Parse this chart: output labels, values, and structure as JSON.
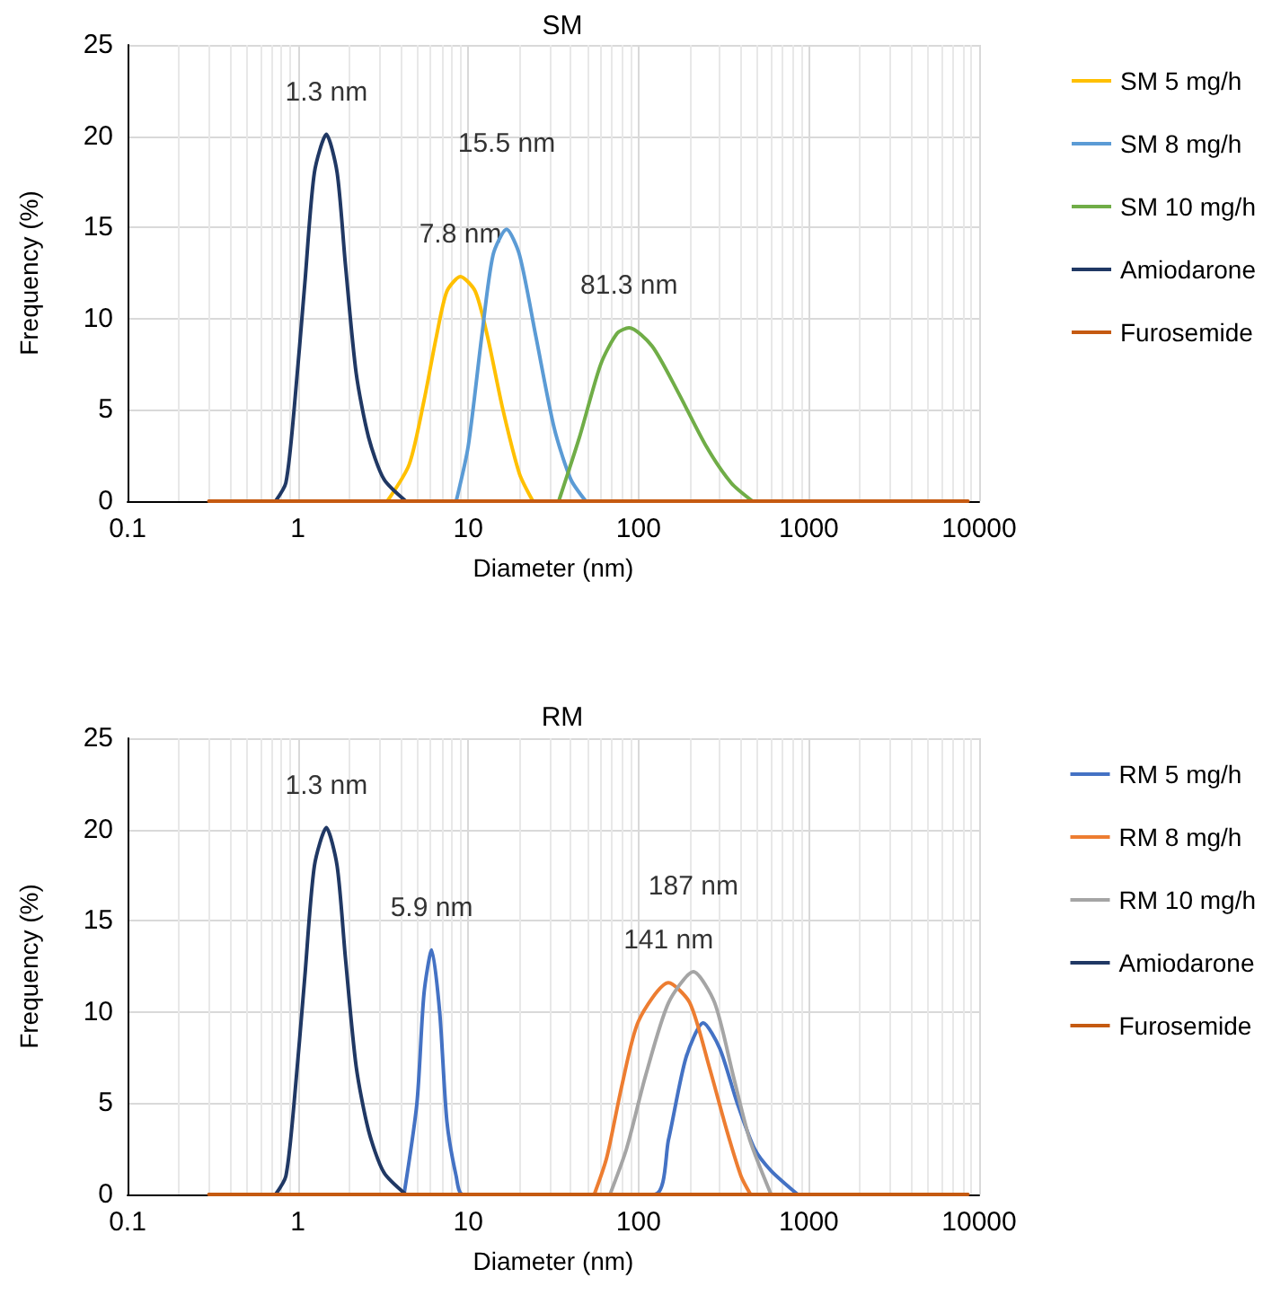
{
  "chart_data": [
    {
      "type": "line",
      "title": "SM",
      "xlabel": "Diameter (nm)",
      "ylabel": "Frequency (%)",
      "log": "x",
      "xlim": [
        0.1,
        10000
      ],
      "xticks": [
        0.1,
        1,
        10,
        100,
        1000,
        10000
      ],
      "ylim": [
        0,
        25
      ],
      "yticks": [
        0,
        5,
        10,
        15,
        20,
        25
      ],
      "grid": true,
      "legend": "right",
      "line_style": "solid",
      "series": [
        {
          "name": "SM 5 mg/h",
          "color": "#ffc000",
          "x": [
            3.35,
            4.5,
            5.5,
            6.5,
            7.5,
            9,
            11,
            13,
            16,
            20,
            24
          ],
          "values": [
            0,
            2,
            5.5,
            9,
            11.5,
            12.3,
            11.5,
            9,
            5,
            1.5,
            0
          ]
        },
        {
          "name": "SM 8 mg/h",
          "color": "#5b9bd5",
          "x": [
            8.5,
            10,
            12,
            14,
            16.8,
            20,
            25,
            32,
            40,
            49
          ],
          "values": [
            0,
            3,
            9,
            13.5,
            14.9,
            13.5,
            9,
            4,
            1.2,
            0
          ]
        },
        {
          "name": "SM 10 mg/h",
          "color": "#70ad47",
          "x": [
            34,
            45,
            60,
            75,
            88,
            120,
            170,
            250,
            350,
            467
          ],
          "values": [
            0,
            3.5,
            7.5,
            9.2,
            9.5,
            8.5,
            6,
            3,
            1,
            0
          ]
        },
        {
          "name": "Amiodarone",
          "color": "#203864",
          "x": [
            0.74,
            0.85,
            0.95,
            1.1,
            1.25,
            1.47,
            1.7,
            1.9,
            2.2,
            2.6,
            3.2,
            4.3
          ],
          "values": [
            0,
            1,
            5,
            12,
            18,
            20.1,
            18,
            13,
            7,
            3.5,
            1.2,
            0
          ]
        },
        {
          "name": "Furosemide",
          "color": "#c55a11",
          "x": [
            0.3,
            8600
          ],
          "values": [
            0,
            0
          ]
        }
      ],
      "annotations": [
        {
          "text": "1.3 nm",
          "x": 1.47,
          "y": 20.1
        },
        {
          "text": "15.5 nm",
          "x": 16.8,
          "y": 14.9
        },
        {
          "text": "7.8 nm",
          "x": 9,
          "y": 12.3
        },
        {
          "text": "81.3 nm",
          "x": 88,
          "y": 9.5
        }
      ]
    },
    {
      "type": "line",
      "title": "RM",
      "xlabel": "Diameter (nm)",
      "ylabel": "Frequency (%)",
      "log": "x",
      "xlim": [
        0.1,
        10000
      ],
      "xticks": [
        0.1,
        1,
        10,
        100,
        1000,
        10000
      ],
      "ylim": [
        0,
        25
      ],
      "yticks": [
        0,
        5,
        10,
        15,
        20,
        25
      ],
      "grid": true,
      "legend": "right",
      "line_style": "solid",
      "series": [
        {
          "name": "RM 5 mg/h",
          "color": "#4472c4",
          "x": [
            4.2,
            5,
            5.5,
            6.1,
            6.8,
            7.5,
            8.5,
            9.3,
            124,
            150,
            190,
            240,
            300,
            380,
            480,
            600,
            860
          ],
          "values": [
            0,
            5,
            11,
            13.4,
            10,
            4,
            1,
            0,
            0,
            3,
            7.5,
            9.4,
            8,
            5,
            2.5,
            1.3,
            0
          ]
        },
        {
          "name": "RM 8 mg/h",
          "color": "#ed7d31",
          "x": [
            55,
            65,
            80,
            100,
            150,
            200,
            260,
            330,
            400,
            455
          ],
          "values": [
            0,
            2,
            6,
            9.5,
            11.6,
            10.5,
            7,
            3.5,
            1,
            0
          ]
        },
        {
          "name": "RM 10 mg/h",
          "color": "#a5a5a5",
          "x": [
            68,
            85,
            110,
            150,
            210,
            280,
            360,
            450,
            600
          ],
          "values": [
            0,
            2.5,
            6.5,
            10.5,
            12.2,
            10.5,
            6.5,
            3,
            0
          ]
        },
        {
          "name": "Amiodarone",
          "color": "#203864",
          "x": [
            0.74,
            0.85,
            0.95,
            1.1,
            1.25,
            1.47,
            1.7,
            1.9,
            2.2,
            2.6,
            3.2,
            4.3
          ],
          "values": [
            0,
            1,
            5,
            12,
            18,
            20.1,
            18,
            13,
            7,
            3.5,
            1.2,
            0
          ]
        },
        {
          "name": "Furosemide",
          "color": "#c55a11",
          "x": [
            0.3,
            8600
          ],
          "values": [
            0,
            0
          ]
        }
      ],
      "annotations": [
        {
          "text": "1.3 nm",
          "x": 1.47,
          "y": 20.1
        },
        {
          "text": "5.9 nm",
          "x": 6.1,
          "y": 13.4
        },
        {
          "text": "187 nm",
          "x": 210,
          "y": 12.2
        },
        {
          "text": "141 nm",
          "x": 150,
          "y": 11.6
        }
      ]
    }
  ]
}
